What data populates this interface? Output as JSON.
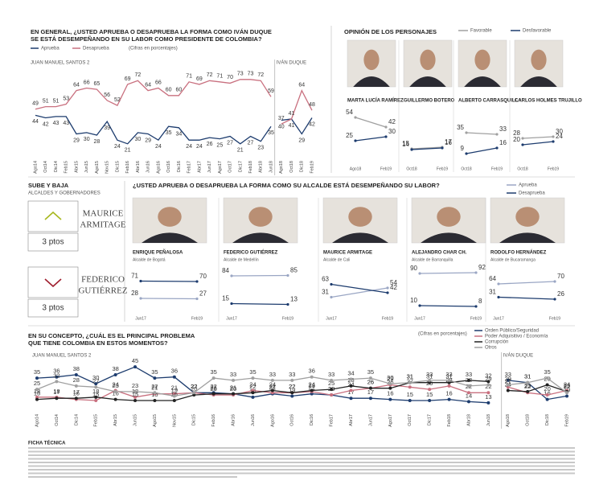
{
  "chart_data": [
    {
      "type": "line",
      "title": [
        "EN GENERAL, ¿USTED APRUEBA O DESAPRUEBA LA FORMA COMO IVÁN DUQUE",
        "SE ESTÁ DESEMPEÑANDO EN SU LABOR COMO PRESIDENTE DE COLOMBIA?"
      ],
      "subtitle": "(Cifras en porcentajes)",
      "periods": [
        {
          "label": "JUAN MANUEL SANTOS 2",
          "start": 0
        },
        {
          "label": "IVÁN DUQUE",
          "start": 24
        }
      ],
      "categories": [
        "Ago14",
        "Oct14",
        "Dic14",
        "Feb15",
        "Abr15",
        "Jun15",
        "Ago15",
        "Nov15",
        "Dic15",
        "Feb16",
        "Abr16",
        "Jun16",
        "Ago16",
        "Oct16",
        "Dic16",
        "Feb17",
        "Abr17",
        "Jun17",
        "Ago17",
        "Oct17",
        "Dic17",
        "Feb18",
        "Abr18",
        "Jun18",
        "Ago18",
        "Oct18",
        "Dic18",
        "Feb19"
      ],
      "series": [
        {
          "name": "Aprueba",
          "color": "#1d3c6e",
          "values": [
            44,
            42,
            43,
            43,
            29,
            30,
            28,
            39,
            24,
            21,
            30,
            29,
            24,
            35,
            34,
            24,
            24,
            26,
            25,
            27,
            21,
            27,
            23,
            35,
            40,
            41,
            29,
            42
          ]
        },
        {
          "name": "Desaprueba",
          "color": "#c9707f",
          "values": [
            49,
            51,
            51,
            53,
            64,
            66,
            65,
            56,
            52,
            69,
            72,
            64,
            66,
            60,
            60,
            71,
            69,
            72,
            71,
            70,
            73,
            73,
            72,
            59,
            37,
            41,
            64,
            48
          ]
        }
      ],
      "ylim": [
        15,
        80
      ]
    },
    {
      "type": "small_multiples",
      "title": "OPINIÓN DE LOS PERSONAJES",
      "legend": [
        {
          "name": "Favorable",
          "color": "#a0a0a0"
        },
        {
          "name": "Desfavorable",
          "color": "#1d3c6e"
        }
      ],
      "ylim": [
        0,
        60
      ],
      "panels": [
        {
          "name": "MARTA LUCÍA RAMÍREZ",
          "categories": [
            "Ago18",
            "Feb19"
          ],
          "series": [
            {
              "values": [
                54,
                42
              ]
            },
            {
              "values": [
                25,
                30
              ]
            }
          ]
        },
        {
          "name": "GUILLERMO BOTERO",
          "categories": [
            "Oct18",
            "Feb19"
          ],
          "series": [
            {
              "values": [
                15,
                17
              ]
            },
            {
              "values": [
                14,
                16
              ]
            }
          ]
        },
        {
          "name": "ALBERTO CARRASQUILLA",
          "categories": [
            "Oct18",
            "Feb19"
          ],
          "series": [
            {
              "values": [
                35,
                33
              ]
            },
            {
              "values": [
                9,
                16
              ]
            }
          ]
        },
        {
          "name": "CARLOS HOLMES TRUJILLO",
          "categories": [
            "Oct18",
            "Feb19"
          ],
          "series": [
            {
              "values": [
                28,
                30
              ]
            },
            {
              "values": [
                20,
                24
              ]
            }
          ]
        }
      ]
    },
    {
      "type": "small_multiples",
      "title": "¿USTED APRUEBA O DESAPRUEBA LA FORMA COMO SU ALCALDE ESTÁ DESEMPEÑANDO SU LABOR?",
      "legend": [
        {
          "name": "Aprueba",
          "color": "#9aa6c4"
        },
        {
          "name": "Desaprueba",
          "color": "#1d3c6e"
        }
      ],
      "ylim": [
        0,
        100
      ],
      "panels": [
        {
          "name": "ENRIQUE PEÑALOSA",
          "role": "Alcalde de Bogotá",
          "categories": [
            "Jun17",
            "Feb19"
          ],
          "series": [
            {
              "values": [
                28,
                27
              ]
            },
            {
              "values": [
                71,
                70
              ]
            }
          ]
        },
        {
          "name": "FEDERICO GUTIÉRREZ",
          "role": "Alcalde de Medellín",
          "categories": [
            "Jun17",
            "Feb19"
          ],
          "series": [
            {
              "values": [
                84,
                85
              ]
            },
            {
              "values": [
                15,
                13
              ]
            }
          ]
        },
        {
          "name": "MAURICE ARMITAGE",
          "role": "Alcalde de Cali",
          "categories": [
            "Jun17",
            "Feb19"
          ],
          "series": [
            {
              "values": [
                31,
                54
              ]
            },
            {
              "values": [
                63,
                42
              ]
            }
          ]
        },
        {
          "name": "ALEJANDRO CHAR CH.",
          "role": "Alcalde de Barranquilla",
          "categories": [
            "Jun17",
            "Feb19"
          ],
          "series": [
            {
              "values": [
                90,
                92
              ]
            },
            {
              "values": [
                10,
                8
              ]
            }
          ]
        },
        {
          "name": "RODOLFO HERNÁNDEZ",
          "role": "Alcalde de Bucaramanga",
          "categories": [
            "Jun17",
            "Feb19"
          ],
          "series": [
            {
              "values": [
                64,
                70
              ]
            },
            {
              "values": [
                31,
                26
              ]
            }
          ]
        }
      ]
    },
    {
      "type": "line",
      "title": [
        "EN SU CONCEPTO, ¿CUÁL ES EL PRINCIPAL PROBLEMA",
        "QUE TIENE COLOMBIA EN ESTOS MOMENTOS?"
      ],
      "subtitle": "(Cifras en porcentajes)",
      "periods": [
        {
          "label": "JUAN MANUEL SANTOS 2",
          "start": 0
        },
        {
          "label": "IVÁN DUQUE",
          "start": 24
        }
      ],
      "categories": [
        "Ago14",
        "Oct14",
        "Dic14",
        "Feb15",
        "Abr15",
        "Jun15",
        "Ago15",
        "Nov15",
        "Dic15",
        "Feb16",
        "Abr16",
        "Jun16",
        "Ago16",
        "Oct16",
        "Dic16",
        "Feb17",
        "Abr17",
        "Jun17",
        "Ago17",
        "Oct17",
        "Dic17",
        "Feb18",
        "Abr18",
        "Jun18",
        "Ago18",
        "Oct18",
        "Dic18",
        "Feb19"
      ],
      "series": [
        {
          "name": "Orden Público/Seguridad",
          "color": "#1d3c6e",
          "values": [
            35,
            36,
            38,
            30,
            38,
            45,
            35,
            36,
            22,
            22,
            21,
            18,
            21,
            19,
            21,
            20,
            17,
            17,
            16,
            15,
            15,
            16,
            14,
            13,
            33,
            31,
            16,
            19
          ]
        },
        {
          "name": "Poder Adquisitivo / Economía",
          "color": "#c9707f",
          "values": [
            18,
            18,
            16,
            15,
            24,
            18,
            21,
            21,
            22,
            20,
            20,
            24,
            22,
            22,
            23,
            20,
            24,
            26,
            29,
            27,
            25,
            28,
            22,
            22,
            27,
            22,
            20,
            24
          ]
        },
        {
          "name": "Corrupción",
          "color": "#222222",
          "values": [
            16,
            17,
            17,
            18,
            16,
            15,
            15,
            15,
            20,
            21,
            21,
            22,
            24,
            22,
            24,
            25,
            28,
            26,
            26,
            31,
            31,
            31,
            33,
            32,
            24,
            23,
            29,
            23
          ]
        },
        {
          "name": "Otros",
          "color": "#a0a0a0",
          "values": [
            25,
            32,
            28,
            27,
            23,
            23,
            22,
            19,
            22,
            35,
            33,
            35,
            33,
            33,
            36,
            33,
            34,
            35,
            30,
            31,
            33,
            33,
            28,
            29,
            29,
            31,
            35,
            22
          ]
        }
      ],
      "ylim": [
        10,
        48
      ]
    }
  ],
  "sube_y_baja": {
    "title": "SUBE Y BAJA",
    "subtitle": "ALCALDES Y GOBERNADORES",
    "items": [
      {
        "name": [
          "MAURICE",
          "ARMITAGE"
        ],
        "change": "3 ptos",
        "direction": "up"
      },
      {
        "name": [
          "FEDERICO",
          "GUTIÉRREZ"
        ],
        "change": "3 ptos",
        "direction": "down"
      }
    ]
  },
  "footer": {
    "title": "FICHA TÉCNICA"
  }
}
